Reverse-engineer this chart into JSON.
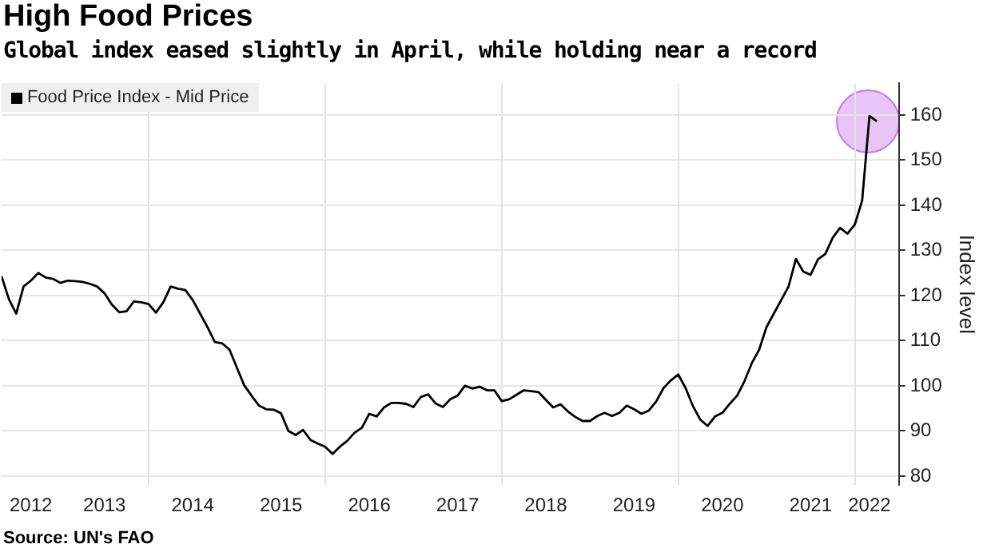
{
  "chart_data": {
    "type": "line",
    "title": "High Food Prices",
    "subtitle": "Global index eased slightly in April, while holding near a record",
    "ylabel": "Index level",
    "x": [
      "2012-05",
      "2012-06",
      "2012-07",
      "2012-08",
      "2012-09",
      "2012-10",
      "2012-11",
      "2012-12",
      "2013-01",
      "2013-02",
      "2013-03",
      "2013-04",
      "2013-05",
      "2013-06",
      "2013-07",
      "2013-08",
      "2013-09",
      "2013-10",
      "2013-11",
      "2013-12",
      "2014-01",
      "2014-02",
      "2014-03",
      "2014-04",
      "2014-05",
      "2014-06",
      "2014-07",
      "2014-08",
      "2014-09",
      "2014-10",
      "2014-11",
      "2014-12",
      "2015-01",
      "2015-02",
      "2015-03",
      "2015-04",
      "2015-05",
      "2015-06",
      "2015-07",
      "2015-08",
      "2015-09",
      "2015-10",
      "2015-11",
      "2015-12",
      "2016-01",
      "2016-02",
      "2016-03",
      "2016-04",
      "2016-05",
      "2016-06",
      "2016-07",
      "2016-08",
      "2016-09",
      "2016-10",
      "2016-11",
      "2016-12",
      "2017-01",
      "2017-02",
      "2017-03",
      "2017-04",
      "2017-05",
      "2017-06",
      "2017-07",
      "2017-08",
      "2017-09",
      "2017-10",
      "2017-11",
      "2017-12",
      "2018-01",
      "2018-02",
      "2018-03",
      "2018-04",
      "2018-05",
      "2018-06",
      "2018-07",
      "2018-08",
      "2018-09",
      "2018-10",
      "2018-11",
      "2018-12",
      "2019-01",
      "2019-02",
      "2019-03",
      "2019-04",
      "2019-05",
      "2019-06",
      "2019-07",
      "2019-08",
      "2019-09",
      "2019-10",
      "2019-11",
      "2019-12",
      "2020-01",
      "2020-02",
      "2020-03",
      "2020-04",
      "2020-05",
      "2020-06",
      "2020-07",
      "2020-08",
      "2020-09",
      "2020-10",
      "2020-11",
      "2020-12",
      "2021-01",
      "2021-02",
      "2021-03",
      "2021-04",
      "2021-05",
      "2021-06",
      "2021-07",
      "2021-08",
      "2021-09",
      "2021-10",
      "2021-11",
      "2021-12",
      "2022-01",
      "2022-02",
      "2022-03",
      "2022-04"
    ],
    "series": [
      {
        "name": "Food Price Index - Mid Price",
        "color": "#000000",
        "values": [
          124.3,
          119.2,
          116,
          122,
          123.3,
          125,
          124,
          123.7,
          122.8,
          123.3,
          123.2,
          123,
          122.6,
          122,
          120.5,
          118,
          116.3,
          116.5,
          118.7,
          118.5,
          118.1,
          116.2,
          118.5,
          122,
          121.5,
          121.2,
          119,
          116,
          113,
          109.7,
          109.4,
          108,
          104,
          100.1,
          97.8,
          95.6,
          94.8,
          94.7,
          93.9,
          90,
          89.1,
          90.2,
          88,
          87.2,
          86.5,
          84.9,
          86.5,
          87.8,
          89.6,
          90.7,
          93.8,
          93.2,
          95.2,
          96.2,
          96.2,
          96,
          95.3,
          97.5,
          98.1,
          96.1,
          95.3,
          97,
          97.8,
          100,
          99.4,
          99.8,
          99,
          99,
          96.6,
          97,
          98,
          99,
          98.8,
          98.6,
          96.9,
          95.2,
          95.9,
          94.3,
          93.1,
          92.2,
          92.2,
          93.3,
          94,
          93.3,
          94,
          95.6,
          94.8,
          93.8,
          94.5,
          96.5,
          99.5,
          101.2,
          102.5,
          99.5,
          95.5,
          92.5,
          91.1,
          93.2,
          94,
          96,
          97.8,
          101,
          105,
          108,
          113,
          116,
          119,
          122,
          128.1,
          125.3,
          124.6,
          128,
          129.2,
          132.8,
          135,
          133.7,
          135.7,
          141,
          159.8,
          158.6
        ]
      }
    ],
    "xlim": [
      "2012-05",
      "2022-07"
    ],
    "xticks": [
      {
        "value": "2012-09",
        "label": "2012"
      },
      {
        "value": "2013-07",
        "label": "2013"
      },
      {
        "value": "2014-01",
        "label": null
      },
      {
        "value": "2014-07",
        "label": "2014"
      },
      {
        "value": "2015-07",
        "label": "2015"
      },
      {
        "value": "2016-01",
        "label": null
      },
      {
        "value": "2016-07",
        "label": "2016"
      },
      {
        "value": "2017-07",
        "label": "2017"
      },
      {
        "value": "2018-01",
        "label": null
      },
      {
        "value": "2018-07",
        "label": "2018"
      },
      {
        "value": "2019-07",
        "label": "2019"
      },
      {
        "value": "2020-01",
        "label": null
      },
      {
        "value": "2020-07",
        "label": "2020"
      },
      {
        "value": "2021-07",
        "label": "2021"
      },
      {
        "value": "2022-01",
        "label": null
      },
      {
        "value": "2022-03",
        "label": "2022"
      }
    ],
    "ylim": [
      78,
      167
    ],
    "yticks": [
      80,
      90,
      100,
      110,
      120,
      130,
      140,
      150,
      160
    ],
    "grid": true,
    "legend": "top left",
    "marker": "none",
    "line_style": "solid",
    "annotations": [
      "Source: UN's FAO"
    ]
  }
}
